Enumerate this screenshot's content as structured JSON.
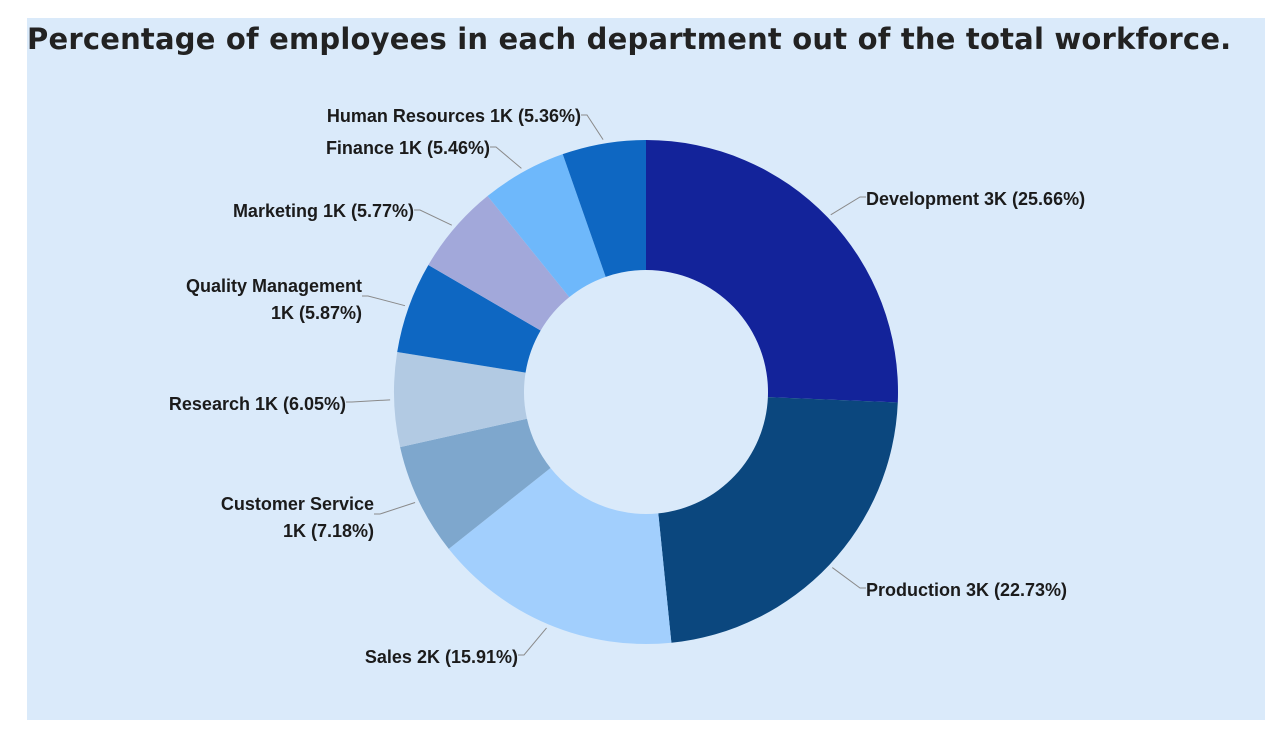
{
  "title": "Percentage of employees in each department out of the total workforce.",
  "chart_data": {
    "type": "pie",
    "style": "donut",
    "title": "Percentage of employees in each department out of the total workforce.",
    "categories": [
      "Development",
      "Production",
      "Sales",
      "Customer Service",
      "Research",
      "Quality Management",
      "Marketing",
      "Finance",
      "Human Resources"
    ],
    "value_labels": [
      "3K",
      "3K",
      "2K",
      "1K",
      "1K",
      "1K",
      "1K",
      "1K",
      "1K"
    ],
    "percentages": [
      25.66,
      22.73,
      15.91,
      7.18,
      6.05,
      5.87,
      5.77,
      5.46,
      5.36
    ],
    "label_lines": [
      [
        "Development 3K (25.66%)"
      ],
      [
        "Production 3K (22.73%)"
      ],
      [
        "Sales 2K (15.91%)"
      ],
      [
        "Customer Service",
        "1K (7.18%)"
      ],
      [
        "Research 1K (6.05%)"
      ],
      [
        "Quality Management",
        "1K (5.87%)"
      ],
      [
        "Marketing 1K (5.77%)"
      ],
      [
        "Finance 1K (5.46%)"
      ],
      [
        "Human Resources 1K (5.36%)"
      ]
    ],
    "colors": [
      "#13239a",
      "#0b477e",
      "#a2cffd",
      "#7ea7cd",
      "#b2cae3",
      "#0e67c2",
      "#a2a8da",
      "#6eb8fb",
      "#0e67c2"
    ],
    "legend": "none"
  }
}
